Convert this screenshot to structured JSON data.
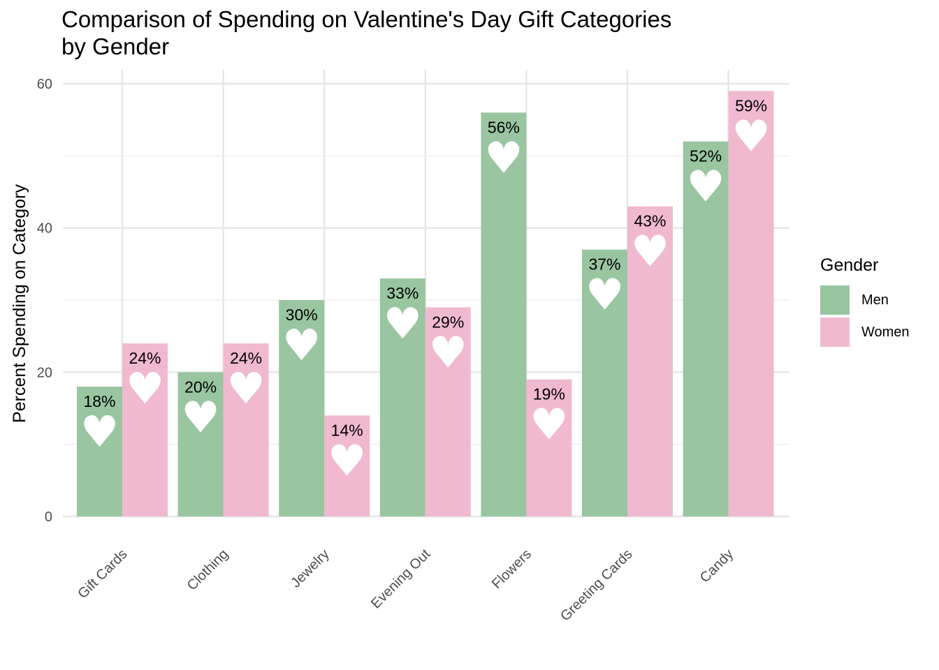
{
  "chart_data": {
    "type": "bar",
    "title": "Comparison of Spending on Valentine's Day Gift Categories\nby Gender",
    "title_lines": [
      "Comparison of Spending on Valentine's Day Gift Categories",
      "by Gender"
    ],
    "xlabel": "",
    "ylabel": "Percent Spending on Category",
    "categories": [
      "Gift Cards",
      "Clothing",
      "Jewelry",
      "Evening Out",
      "Flowers",
      "Greeting Cards",
      "Candy"
    ],
    "series": [
      {
        "name": "Men",
        "color": "#99c5a0",
        "values": [
          18,
          20,
          30,
          33,
          56,
          37,
          52
        ],
        "labels": [
          "18%",
          "20%",
          "30%",
          "33%",
          "56%",
          "37%",
          "52%"
        ]
      },
      {
        "name": "Women",
        "color": "#f0b9d0",
        "values": [
          24,
          24,
          14,
          29,
          19,
          43,
          59
        ],
        "labels": [
          "24%",
          "24%",
          "14%",
          "29%",
          "19%",
          "43%",
          "59%"
        ]
      }
    ],
    "y_ticks": [
      0,
      20,
      40,
      60
    ],
    "y_tick_labels": [
      "0",
      "20",
      "40",
      "60"
    ],
    "ylim": [
      0,
      62
    ],
    "grid": true,
    "legend": {
      "title": "Gender",
      "placement": "right"
    },
    "bar_marker": "heart"
  }
}
